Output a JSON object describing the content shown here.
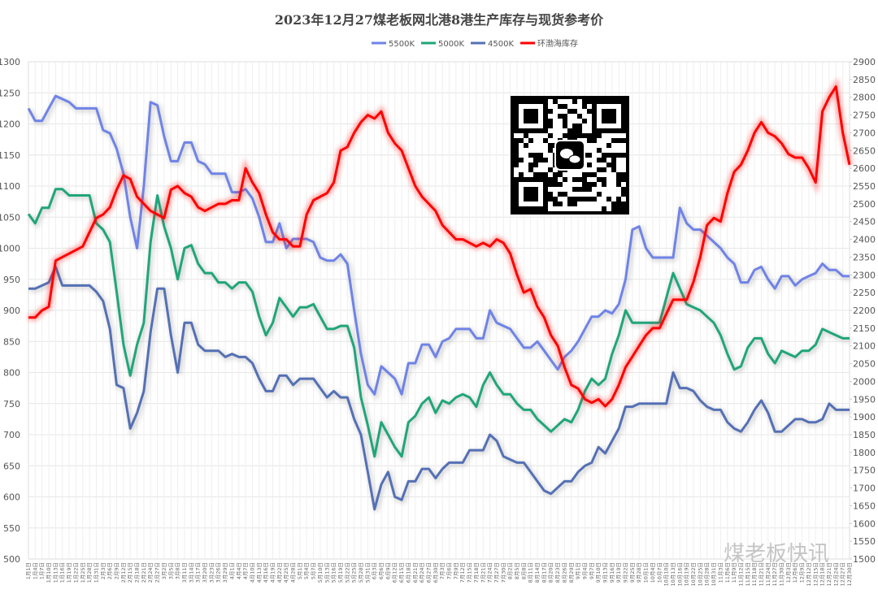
{
  "chart_data": {
    "type": "line",
    "title": "2023年12月27煤老板网北港8港生产库存与现货参考价",
    "watermark": "煤老板快讯",
    "categories": [
      "1月1日",
      "1月4日",
      "1月7日",
      "1月10日",
      "1月13日",
      "1月16日",
      "1月19日",
      "1月22日",
      "1月25日",
      "1月28日",
      "1月31日",
      "2月3日",
      "2月6日",
      "2月9日",
      "2月12日",
      "2月15日",
      "2月18日",
      "2月21日",
      "2月24日",
      "2月27日",
      "3月2日",
      "3月5日",
      "3月8日",
      "3月11日",
      "3月14日",
      "3月17日",
      "3月20日",
      "3月23日",
      "3月26日",
      "3月29日",
      "4月1日",
      "4月4日",
      "4月7日",
      "4月10日",
      "4月13日",
      "4月16日",
      "4月19日",
      "4月22日",
      "4月25日",
      "4月28日",
      "5月1日",
      "5月4日",
      "5月7日",
      "5月10日",
      "5月13日",
      "5月16日",
      "5月19日",
      "5月22日",
      "5月25日",
      "5月28日",
      "5月31日",
      "6月3日",
      "6月6日",
      "6月9日",
      "6月12日",
      "6月15日",
      "6月18日",
      "6月21日",
      "6月24日",
      "6月27日",
      "6月30日",
      "7月3日",
      "7月6日",
      "7月9日",
      "7月12日",
      "7月15日",
      "7月18日",
      "7月21日",
      "7月24日",
      "7月27日",
      "7月30日",
      "8月2日",
      "8月5日",
      "8月8日",
      "8月11日",
      "8月14日",
      "8月17日",
      "8月20日",
      "8月23日",
      "8月26日",
      "8月29日",
      "9月1日",
      "9月4日",
      "9月7日",
      "9月10日",
      "9月13日",
      "9月16日",
      "9月19日",
      "9月22日",
      "9月25日",
      "9月28日",
      "10月1日",
      "10月4日",
      "10月7日",
      "10月10日",
      "10月13日",
      "10月16日",
      "10月19日",
      "10月22日",
      "10月25日",
      "10月28日",
      "10月31日",
      "11月3日",
      "11月6日",
      "11月9日",
      "11月12日",
      "11月15日",
      "11月18日",
      "11月21日",
      "11月24日",
      "11月27日",
      "11月30日",
      "12月3日",
      "12月6日",
      "12月9日",
      "12月12日",
      "12月15日",
      "12月18日",
      "12月21日",
      "12月24日",
      "12月27日",
      "12月30日"
    ],
    "series": [
      {
        "name": "5500K",
        "color": "#6f83e8",
        "values": [
          1225,
          1205,
          1205,
          1225,
          1245,
          1240,
          1235,
          1225,
          1225,
          1225,
          1225,
          1190,
          1185,
          1160,
          1120,
          1050,
          1000,
          1100,
          1235,
          1230,
          1180,
          1140,
          1140,
          1170,
          1170,
          1140,
          1135,
          1120,
          1120,
          1120,
          1090,
          1090,
          1095,
          1080,
          1050,
          1010,
          1010,
          1040,
          1000,
          1015,
          1015,
          1015,
          1010,
          985,
          980,
          980,
          990,
          975,
          900,
          830,
          780,
          765,
          810,
          800,
          790,
          765,
          815,
          815,
          845,
          845,
          825,
          850,
          855,
          870,
          870,
          870,
          855,
          855,
          900,
          880,
          875,
          870,
          855,
          840,
          840,
          850,
          835,
          820,
          805,
          825,
          835,
          850,
          870,
          890,
          890,
          900,
          895,
          910,
          950,
          1030,
          1035,
          1000,
          985,
          985,
          985,
          985,
          1065,
          1040,
          1030,
          1030,
          1020,
          1010,
          1000,
          985,
          975,
          945,
          945,
          965,
          970,
          950,
          935,
          955,
          955,
          940,
          950,
          955,
          960,
          975,
          965,
          965,
          955,
          955
        ]
      },
      {
        "name": "5000K",
        "color": "#1fa67a",
        "values": [
          1055,
          1040,
          1065,
          1065,
          1095,
          1095,
          1085,
          1085,
          1085,
          1085,
          1040,
          1030,
          1010,
          930,
          845,
          795,
          845,
          880,
          1010,
          1085,
          1035,
          1000,
          950,
          1000,
          1005,
          975,
          960,
          960,
          945,
          945,
          935,
          945,
          945,
          930,
          890,
          860,
          880,
          920,
          905,
          890,
          905,
          905,
          910,
          890,
          870,
          870,
          875,
          875,
          840,
          760,
          715,
          665,
          720,
          700,
          680,
          665,
          720,
          730,
          750,
          760,
          735,
          755,
          750,
          760,
          765,
          760,
          745,
          780,
          800,
          780,
          765,
          765,
          750,
          740,
          740,
          725,
          715,
          705,
          715,
          725,
          720,
          740,
          770,
          790,
          780,
          790,
          830,
          860,
          900,
          880,
          880,
          880,
          880,
          880,
          920,
          960,
          935,
          910,
          905,
          900,
          890,
          880,
          860,
          830,
          805,
          810,
          840,
          855,
          855,
          830,
          815,
          835,
          830,
          825,
          835,
          835,
          845,
          870,
          865,
          860,
          855,
          855
        ]
      },
      {
        "name": "4500K",
        "color": "#5470b5",
        "values": [
          935,
          935,
          940,
          945,
          970,
          940,
          940,
          940,
          940,
          940,
          930,
          915,
          870,
          780,
          775,
          710,
          735,
          770,
          865,
          935,
          935,
          860,
          800,
          880,
          880,
          845,
          835,
          835,
          835,
          825,
          830,
          825,
          825,
          815,
          790,
          770,
          770,
          795,
          795,
          780,
          790,
          790,
          790,
          775,
          760,
          770,
          760,
          760,
          725,
          700,
          640,
          580,
          620,
          640,
          600,
          595,
          625,
          625,
          645,
          645,
          630,
          645,
          655,
          655,
          655,
          675,
          675,
          675,
          700,
          690,
          665,
          660,
          655,
          655,
          640,
          625,
          610,
          605,
          615,
          625,
          625,
          640,
          650,
          655,
          680,
          670,
          690,
          710,
          745,
          745,
          750,
          750,
          750,
          750,
          750,
          800,
          775,
          775,
          770,
          755,
          745,
          740,
          740,
          720,
          710,
          705,
          720,
          740,
          755,
          735,
          705,
          705,
          715,
          725,
          725,
          720,
          720,
          725,
          750,
          740,
          740,
          740
        ]
      },
      {
        "name": "环渤海库存",
        "color": "#ff0000",
        "axis": "y2",
        "values": [
          2180,
          2180,
          2200,
          2210,
          2340,
          2350,
          2360,
          2370,
          2380,
          2420,
          2460,
          2470,
          2490,
          2540,
          2580,
          2570,
          2520,
          2500,
          2480,
          2470,
          2460,
          2540,
          2550,
          2530,
          2520,
          2490,
          2480,
          2490,
          2500,
          2500,
          2510,
          2510,
          2600,
          2560,
          2530,
          2470,
          2420,
          2400,
          2400,
          2380,
          2380,
          2470,
          2510,
          2520,
          2530,
          2560,
          2650,
          2660,
          2700,
          2730,
          2750,
          2740,
          2760,
          2700,
          2670,
          2650,
          2600,
          2550,
          2520,
          2500,
          2480,
          2440,
          2420,
          2400,
          2400,
          2390,
          2380,
          2390,
          2380,
          2400,
          2390,
          2360,
          2300,
          2250,
          2260,
          2210,
          2180,
          2130,
          2100,
          2040,
          1990,
          1980,
          1950,
          1940,
          1950,
          1930,
          1950,
          1990,
          2040,
          2070,
          2100,
          2130,
          2150,
          2150,
          2190,
          2230,
          2230,
          2230,
          2280,
          2350,
          2440,
          2460,
          2450,
          2530,
          2590,
          2610,
          2650,
          2700,
          2730,
          2700,
          2690,
          2670,
          2640,
          2630,
          2630,
          2600,
          2560,
          2760,
          2800,
          2830,
          2700,
          2610
        ]
      }
    ],
    "ylim": [
      500,
      1300
    ],
    "yticks": [
      500,
      550,
      600,
      650,
      700,
      750,
      800,
      850,
      900,
      950,
      1000,
      1050,
      1100,
      1150,
      1200,
      1250,
      1300
    ],
    "y2lim": [
      1500,
      2900
    ],
    "y2ticks": [
      1500,
      1550,
      1600,
      1650,
      1700,
      1750,
      1800,
      1850,
      1900,
      1950,
      2000,
      2050,
      2100,
      2150,
      2200,
      2250,
      2300,
      2350,
      2400,
      2450,
      2500,
      2550,
      2600,
      2650,
      2700,
      2750,
      2800,
      2850,
      2900
    ],
    "grid": true
  }
}
